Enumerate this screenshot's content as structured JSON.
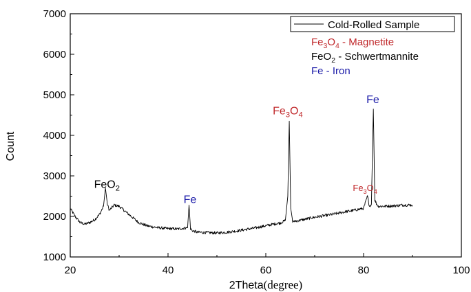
{
  "chart_data": {
    "type": "line",
    "xlabel_main": "2Theta",
    "xlabel_unit": "(degree)",
    "ylabel": "Count",
    "xlim": [
      20,
      100
    ],
    "ylim": [
      1000,
      7000
    ],
    "x_ticks": [
      20,
      40,
      60,
      80,
      100
    ],
    "y_ticks": [
      1000,
      2000,
      3000,
      4000,
      5000,
      6000,
      7000
    ],
    "legend_position": "top-right",
    "grid": false,
    "series": [
      {
        "name": "Cold-Rolled Sample",
        "color": "#000000",
        "x": [
          20,
          21,
          22,
          23,
          24,
          25,
          26,
          26.8,
          27.2,
          27.6,
          28,
          29,
          30,
          31,
          32,
          33,
          34,
          35,
          36,
          38,
          40,
          42,
          44,
          44.3,
          44.6,
          44.9,
          45.5,
          46,
          48,
          50,
          52,
          54,
          56,
          58,
          60,
          62,
          63,
          64,
          64.5,
          64.8,
          65.1,
          65.5,
          66,
          68,
          70,
          72,
          74,
          76,
          78,
          80,
          80.8,
          81.2,
          81.6,
          82.0,
          82.3,
          82.7,
          83,
          84,
          86,
          88,
          90
        ],
        "values": [
          2200,
          2000,
          1850,
          1810,
          1850,
          1920,
          2050,
          2250,
          2700,
          2300,
          2150,
          2280,
          2250,
          2150,
          2050,
          1950,
          1850,
          1800,
          1760,
          1720,
          1700,
          1690,
          1720,
          2280,
          1700,
          1650,
          1630,
          1610,
          1600,
          1590,
          1610,
          1640,
          1680,
          1720,
          1770,
          1820,
          1840,
          1900,
          2500,
          4350,
          2200,
          1880,
          1880,
          1930,
          1980,
          2020,
          2060,
          2110,
          2150,
          2200,
          2500,
          2250,
          2300,
          4650,
          2400,
          2300,
          2250,
          2250,
          2260,
          2280,
          2280
        ]
      }
    ],
    "annotations": [
      {
        "base": "FeO",
        "sub": "2",
        "post": "",
        "x": 27.5,
        "y": 2700,
        "color": "#000000"
      },
      {
        "base": "Fe",
        "sub": "",
        "post": "",
        "x": 44.5,
        "y": 2330,
        "color": "#1a1aa8"
      },
      {
        "base": "Fe",
        "sub": "3",
        "mid": "O",
        "sub2": "4",
        "x": 64.5,
        "y": 4520,
        "color": "#c0282b"
      },
      {
        "base": "Fe",
        "sub": "3",
        "mid": "O",
        "sub2": "4",
        "x": 80.3,
        "y": 2630,
        "color": "#c0282b"
      },
      {
        "base": "Fe",
        "sub": "",
        "post": "",
        "x": 81.9,
        "y": 4800,
        "color": "#1a1aa8"
      }
    ],
    "key_lines": [
      {
        "base": "Fe",
        "sub": "3",
        "mid": "O",
        "sub2": "4",
        "post": " - Magnetite",
        "color": "#c0282b"
      },
      {
        "base": "FeO",
        "sub": "2",
        "post": " - Schwertmannite",
        "color": "#000000"
      },
      {
        "base": "Fe",
        "sub": "",
        "post": " - Iron",
        "color": "#1a1aa8"
      }
    ]
  }
}
